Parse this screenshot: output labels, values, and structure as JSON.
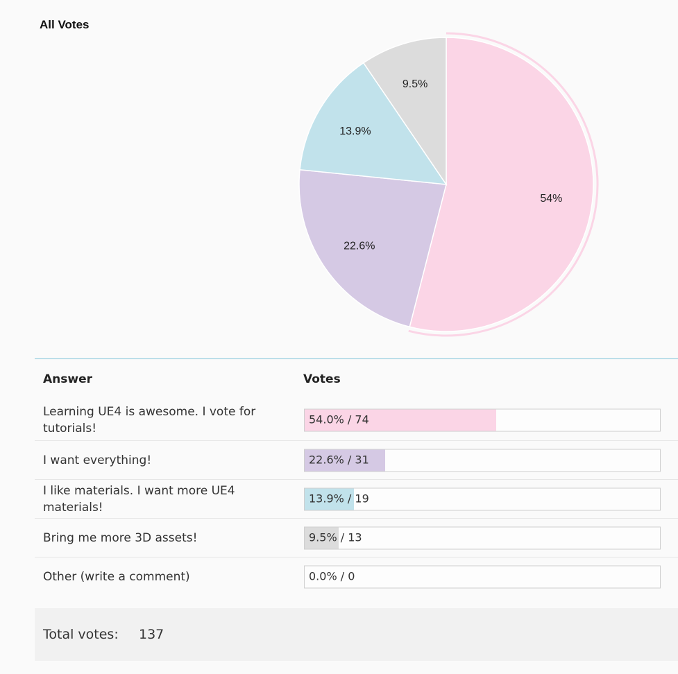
{
  "chart_data": {
    "type": "pie",
    "title": "All Votes",
    "slices": [
      {
        "label": "Learning UE4 is awesome. I vote for tutorials!",
        "value": 54.0,
        "display": "54%",
        "color": "#fbd5e6"
      },
      {
        "label": "I want everything!",
        "value": 22.6,
        "display": "22.6%",
        "color": "#d5c9e4"
      },
      {
        "label": "I like materials. I want more UE4 materials!",
        "value": 13.9,
        "display": "13.9%",
        "color": "#c1e2eb"
      },
      {
        "label": "Bring me more 3D assets!",
        "value": 9.5,
        "display": "9.5%",
        "color": "#dcdcdc"
      }
    ]
  },
  "table": {
    "col_answer": "Answer",
    "col_votes": "Votes",
    "rows": [
      {
        "answer": "Learning UE4 is awesome. I vote for tutorials!",
        "pct": 54.0,
        "text": "54.0% / 74",
        "color": "#fbd5e6"
      },
      {
        "answer": "I want everything!",
        "pct": 22.6,
        "text": "22.6% / 31",
        "color": "#d5c9e4"
      },
      {
        "answer": "I like materials. I want more UE4 materials!",
        "pct": 13.9,
        "text": "13.9% / 19",
        "color": "#c1e2eb"
      },
      {
        "answer": "Bring me more 3D assets!",
        "pct": 9.5,
        "text": "9.5% / 13",
        "color": "#dcdcdc"
      },
      {
        "answer": "Other (write a comment)",
        "pct": 0.0,
        "text": "0.0% / 0",
        "color": "#dcdcdc"
      }
    ]
  },
  "total": {
    "label": "Total votes:",
    "value": "137"
  }
}
